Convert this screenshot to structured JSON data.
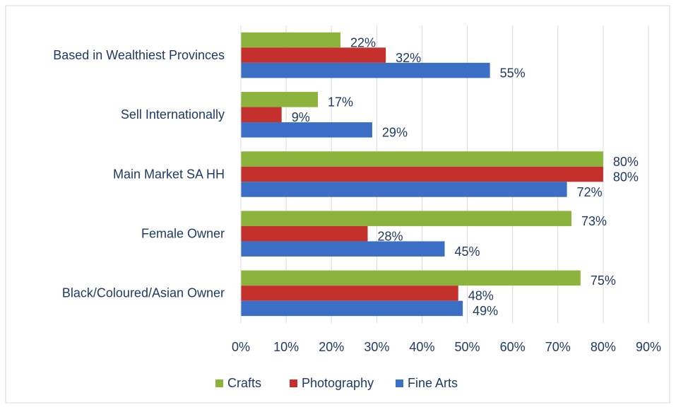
{
  "chart_data": {
    "type": "bar",
    "orientation": "horizontal",
    "categories": [
      "Based in Wealthiest Provinces",
      "Sell Internationally",
      "Main Market SA HH",
      "Female Owner",
      "Black/Coloured/Asian Owner"
    ],
    "series": [
      {
        "name": "Crafts",
        "color": "#8cb43c",
        "values": [
          22,
          17,
          80,
          73,
          75
        ],
        "value_labels": [
          "22%",
          "17%",
          "80%",
          "73%",
          "75%"
        ]
      },
      {
        "name": "Photography",
        "color": "#c4312d",
        "values": [
          32,
          9,
          80,
          28,
          48
        ],
        "value_labels": [
          "32%",
          "9%",
          "80%",
          "28%",
          "48%"
        ]
      },
      {
        "name": "Fine Arts",
        "color": "#3b6fc5",
        "values": [
          55,
          29,
          72,
          45,
          49
        ],
        "value_labels": [
          "55%",
          "29%",
          "72%",
          "45%",
          "49%"
        ]
      }
    ],
    "xlim": [
      0,
      90
    ],
    "xticks": [
      {
        "value": 0,
        "label": "0%"
      },
      {
        "value": 10,
        "label": "10%"
      },
      {
        "value": 20,
        "label": "20%"
      },
      {
        "value": 30,
        "label": "30%"
      },
      {
        "value": 40,
        "label": "40%"
      },
      {
        "value": 50,
        "label": "50%"
      },
      {
        "value": 60,
        "label": "60%"
      },
      {
        "value": 70,
        "label": "70%"
      },
      {
        "value": 80,
        "label": "80%"
      },
      {
        "value": 90,
        "label": "90%"
      }
    ],
    "grid": true,
    "legend": "bottom"
  }
}
